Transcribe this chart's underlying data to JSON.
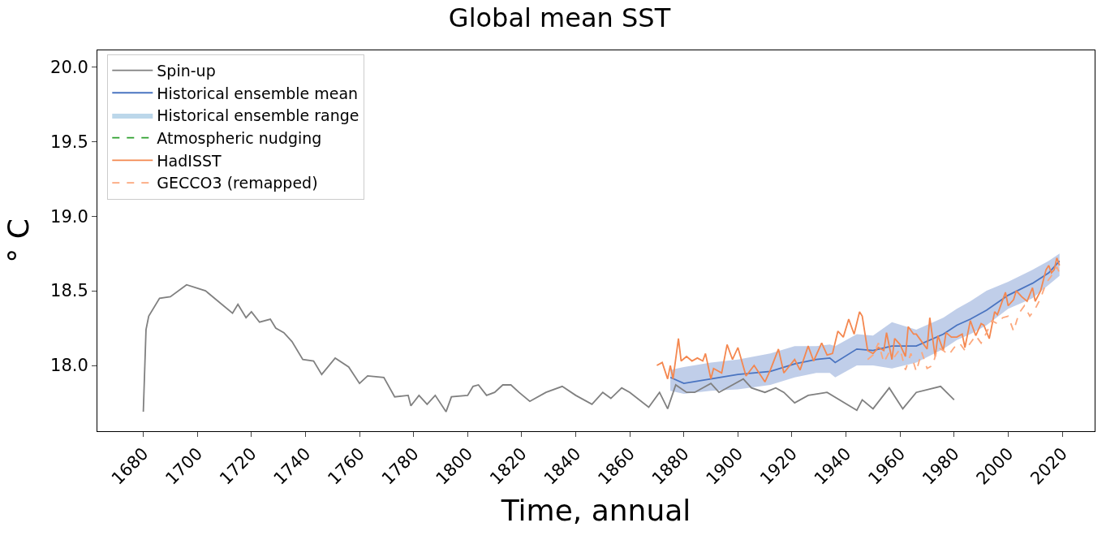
{
  "chart_data": {
    "type": "line",
    "title": "Global mean SST",
    "xlabel": "Time, annual",
    "ylabel": "° C",
    "xlim": [
      1663,
      2032
    ],
    "ylim": [
      17.56,
      20.11
    ],
    "xticks": [
      1680,
      1700,
      1720,
      1740,
      1760,
      1780,
      1800,
      1820,
      1840,
      1860,
      1880,
      1900,
      1920,
      1940,
      1960,
      1980,
      2000,
      2020
    ],
    "yticks": [
      {
        "value": 18.0,
        "label": "18.0"
      },
      {
        "value": 18.5,
        "label": "18.5"
      },
      {
        "value": 19.0,
        "label": "19.0"
      },
      {
        "value": 19.5,
        "label": "19.5"
      },
      {
        "value": 20.0,
        "label": "20.0"
      }
    ],
    "grid": false,
    "legend": "top left",
    "marker": "none",
    "series": [
      {
        "name": "Spin-up",
        "color": "#808080",
        "line_style": "solid",
        "x": [
          1680,
          1681,
          1682,
          1686,
          1690,
          1696,
          1703,
          1713,
          1715,
          1718,
          1720,
          1723,
          1727,
          1729,
          1732,
          1735,
          1739,
          1743,
          1746,
          1751,
          1756,
          1760,
          1763,
          1769,
          1773,
          1778,
          1779,
          1782,
          1785,
          1788,
          1792,
          1794,
          1800,
          1802,
          1804,
          1807,
          1810,
          1813,
          1816,
          1819,
          1823,
          1829,
          1835,
          1840,
          1846,
          1850,
          1853,
          1857,
          1860,
          1867,
          1871,
          1874,
          1877,
          1881,
          1884,
          1890,
          1893,
          1902,
          1905,
          1910,
          1914,
          1917,
          1921,
          1926,
          1933,
          1944,
          1946,
          1950,
          1956,
          1961,
          1966,
          1975,
          1980
        ],
        "values": [
          17.69,
          18.24,
          18.33,
          18.45,
          18.46,
          18.54,
          18.5,
          18.35,
          18.41,
          18.32,
          18.36,
          18.29,
          18.31,
          18.25,
          18.22,
          18.16,
          18.04,
          18.03,
          17.94,
          18.05,
          17.99,
          17.88,
          17.93,
          17.92,
          17.79,
          17.8,
          17.73,
          17.8,
          17.74,
          17.8,
          17.69,
          17.79,
          17.8,
          17.86,
          17.87,
          17.8,
          17.82,
          17.87,
          17.87,
          17.82,
          17.76,
          17.82,
          17.86,
          17.8,
          17.74,
          17.82,
          17.78,
          17.85,
          17.82,
          17.72,
          17.82,
          17.71,
          17.87,
          17.82,
          17.82,
          17.88,
          17.82,
          17.91,
          17.85,
          17.82,
          17.85,
          17.82,
          17.75,
          17.8,
          17.82,
          17.7,
          17.77,
          17.71,
          17.85,
          17.71,
          17.82,
          17.86,
          17.77
        ]
      },
      {
        "name": "Historical ensemble mean",
        "color": "#4a74c0",
        "line_style": "solid",
        "x": [
          1875,
          1880,
          1890,
          1900,
          1912,
          1921,
          1929,
          1934,
          1936,
          1944,
          1950,
          1957,
          1966,
          1976,
          1981,
          1986,
          1992,
          2000,
          2009,
          2015,
          2019
        ],
        "values": [
          17.92,
          17.88,
          17.91,
          17.94,
          17.96,
          18.01,
          18.04,
          18.05,
          18.02,
          18.11,
          18.1,
          18.13,
          18.13,
          18.21,
          18.27,
          18.31,
          18.37,
          18.47,
          18.55,
          18.62,
          18.7
        ],
        "lower": [
          17.83,
          17.81,
          17.83,
          17.84,
          17.87,
          17.92,
          17.95,
          17.95,
          17.92,
          18.0,
          18.0,
          17.98,
          18.02,
          18.11,
          18.17,
          18.21,
          18.27,
          18.38,
          18.45,
          18.54,
          18.6
        ],
        "upper": [
          17.97,
          17.99,
          18.02,
          18.04,
          18.08,
          18.13,
          18.13,
          18.14,
          18.13,
          18.21,
          18.2,
          18.29,
          18.24,
          18.32,
          18.38,
          18.43,
          18.5,
          18.56,
          18.64,
          18.7,
          18.75
        ]
      },
      {
        "name": "Historical ensemble range",
        "type": "area",
        "color": "#bcd7ea"
      },
      {
        "name": "Atmospheric nudging",
        "color": "#2ca02c",
        "line_style": "dashed"
      },
      {
        "name": "HadISST",
        "color": "#f4874f",
        "line_style": "solid",
        "x": [
          1870,
          1872,
          1874,
          1875,
          1876,
          1878,
          1879,
          1881,
          1883,
          1885,
          1887,
          1888,
          1890,
          1891,
          1894,
          1896,
          1898,
          1900,
          1903,
          1906,
          1910,
          1912,
          1915,
          1917,
          1921,
          1923,
          1926,
          1928,
          1931,
          1933,
          1935,
          1937,
          1939,
          1941,
          1943,
          1945,
          1946,
          1948,
          1950,
          1952,
          1954,
          1955,
          1957,
          1958,
          1960,
          1962,
          1963,
          1965,
          1966,
          1968,
          1970,
          1971,
          1973,
          1974,
          1976,
          1977,
          1979,
          1981,
          1983,
          1984,
          1986,
          1988,
          1990,
          1991,
          1993,
          1995,
          1996,
          1998,
          1999,
          2000,
          2002,
          2003,
          2005,
          2007,
          2009,
          2010,
          2012,
          2014,
          2015,
          2016,
          2017,
          2018,
          2019
        ],
        "values": [
          18.0,
          18.02,
          17.91,
          18.0,
          17.91,
          18.18,
          18.03,
          18.06,
          18.03,
          18.05,
          18.03,
          18.08,
          17.91,
          17.98,
          17.95,
          18.14,
          18.04,
          18.12,
          17.93,
          18.0,
          17.89,
          17.97,
          18.11,
          17.95,
          18.04,
          17.97,
          18.13,
          18.03,
          18.15,
          18.07,
          18.08,
          18.23,
          18.19,
          18.31,
          18.21,
          18.36,
          18.33,
          18.1,
          18.08,
          18.12,
          18.1,
          18.22,
          18.04,
          18.18,
          18.14,
          18.06,
          18.26,
          18.21,
          18.21,
          18.16,
          18.11,
          18.32,
          18.06,
          18.2,
          18.1,
          18.22,
          18.19,
          18.19,
          18.21,
          18.12,
          18.3,
          18.2,
          18.28,
          18.27,
          18.18,
          18.36,
          18.34,
          18.44,
          18.49,
          18.4,
          18.44,
          18.5,
          18.46,
          18.43,
          18.52,
          18.43,
          18.5,
          18.64,
          18.67,
          18.62,
          18.64,
          18.72,
          18.67
        ]
      },
      {
        "name": "GECCO3 (remapped)",
        "color": "#fca77c",
        "line_style": "dashed",
        "x": [
          1948,
          1950,
          1952,
          1954,
          1956,
          1958,
          1960,
          1962,
          1964,
          1966,
          1968,
          1970,
          1972,
          1974,
          1976,
          1978,
          1980,
          1982,
          1984,
          1986,
          1988,
          1990,
          1992,
          1994,
          1996,
          1998,
          2000,
          2002,
          2004,
          2006,
          2008,
          2010,
          2012,
          2014,
          2016,
          2018,
          2019
        ],
        "values": [
          18.04,
          18.07,
          18.15,
          18.02,
          18.09,
          18.06,
          18.11,
          17.97,
          18.08,
          17.96,
          18.09,
          17.98,
          18.0,
          18.12,
          18.1,
          18.07,
          18.12,
          18.15,
          18.1,
          18.15,
          18.2,
          18.15,
          18.22,
          18.3,
          18.28,
          18.32,
          18.33,
          18.23,
          18.35,
          18.4,
          18.33,
          18.38,
          18.45,
          18.55,
          18.6,
          18.66,
          18.62
        ]
      }
    ]
  }
}
